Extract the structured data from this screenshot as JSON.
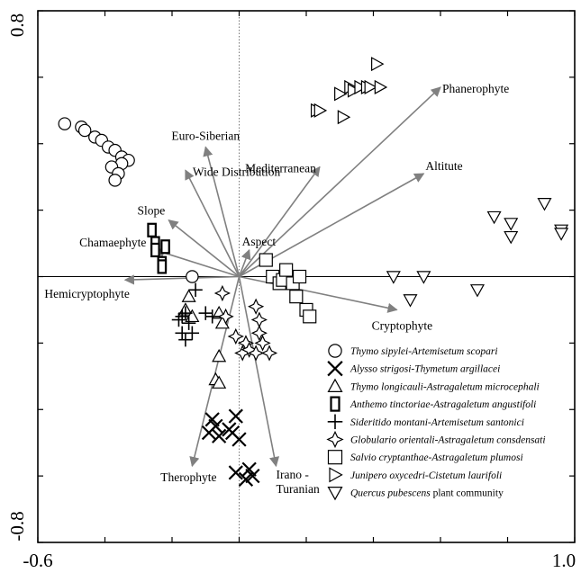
{
  "chart_data": {
    "type": "scatter",
    "subtype": "ordination-biplot",
    "title": "",
    "xlabel": "",
    "ylabel": "",
    "xlim": [
      -0.6,
      1.0
    ],
    "ylim": [
      -0.8,
      0.8
    ],
    "x_tick_labels": [
      "-0.6",
      "1.0"
    ],
    "y_tick_labels": [
      "0.8",
      "-0.8"
    ],
    "zero_lines": true,
    "grid": false,
    "legend_position": "bottom-right",
    "arrow_color": "#808080",
    "arrows": [
      {
        "label": "Phanerophyte",
        "x": 0.6,
        "y": 0.57
      },
      {
        "label": "Altitute",
        "x": 0.55,
        "y": 0.31
      },
      {
        "label": "Euro-Siberian",
        "x": -0.1,
        "y": 0.39
      },
      {
        "label": "Wide Distribution",
        "x": -0.16,
        "y": 0.32
      },
      {
        "label": "Mediterranean",
        "x": 0.24,
        "y": 0.33
      },
      {
        "label": "Slope",
        "x": -0.21,
        "y": 0.17
      },
      {
        "label": "Aspect",
        "x": 0.03,
        "y": 0.08
      },
      {
        "label": "Chamaephyte",
        "x": -0.25,
        "y": 0.08
      },
      {
        "label": "Hemicryptophyte",
        "x": -0.34,
        "y": -0.01
      },
      {
        "label": "Cryptophyte",
        "x": 0.47,
        "y": -0.1
      },
      {
        "label": "Therophyte",
        "x": -0.14,
        "y": -0.57
      },
      {
        "label": "Irano -\nTuranian",
        "x": 0.11,
        "y": -0.57
      }
    ],
    "series": [
      {
        "name": "Thymo sipylei-Artemisetum scopari",
        "marker": "circle",
        "points": [
          [
            -0.52,
            0.46
          ],
          [
            -0.47,
            0.45
          ],
          [
            -0.46,
            0.44
          ],
          [
            -0.43,
            0.42
          ],
          [
            -0.41,
            0.41
          ],
          [
            -0.39,
            0.39
          ],
          [
            -0.37,
            0.38
          ],
          [
            -0.35,
            0.36
          ],
          [
            -0.33,
            0.35
          ],
          [
            -0.35,
            0.34
          ],
          [
            -0.38,
            0.33
          ],
          [
            -0.36,
            0.31
          ],
          [
            -0.37,
            0.29
          ],
          [
            -0.14,
            0.0
          ]
        ]
      },
      {
        "name": "Alysso strigosi-Thymetum argillacei",
        "marker": "x",
        "points": [
          [
            -0.08,
            -0.43
          ],
          [
            -0.01,
            -0.42
          ],
          [
            -0.07,
            -0.45
          ],
          [
            -0.03,
            -0.46
          ],
          [
            -0.09,
            -0.47
          ],
          [
            -0.06,
            -0.48
          ],
          [
            -0.02,
            -0.47
          ],
          [
            0.0,
            -0.49
          ],
          [
            -0.01,
            -0.59
          ],
          [
            0.03,
            -0.58
          ],
          [
            0.02,
            -0.61
          ],
          [
            0.04,
            -0.6
          ]
        ]
      },
      {
        "name": "Thymo longicauli-Astragaletum microcephali",
        "marker": "triangle-up",
        "points": [
          [
            -0.15,
            -0.06
          ],
          [
            -0.16,
            -0.1
          ],
          [
            -0.14,
            -0.12
          ],
          [
            -0.06,
            -0.11
          ],
          [
            -0.05,
            -0.14
          ],
          [
            -0.06,
            -0.24
          ],
          [
            -0.07,
            -0.31
          ],
          [
            -0.06,
            -0.32
          ]
        ]
      },
      {
        "name": "Anthemo tinctoriae-Astragaletum angustifoli",
        "marker": "rect-tall",
        "points": [
          [
            -0.26,
            0.14
          ],
          [
            -0.25,
            0.1
          ],
          [
            -0.25,
            0.08
          ],
          [
            -0.22,
            0.09
          ],
          [
            -0.23,
            0.04
          ],
          [
            -0.23,
            0.03
          ]
        ]
      },
      {
        "name": "Sideritido montani-Artemisetum santonici",
        "marker": "plus",
        "points": [
          [
            -0.13,
            -0.04
          ],
          [
            -0.16,
            -0.11
          ],
          [
            -0.15,
            -0.14
          ],
          [
            -0.17,
            -0.12
          ],
          [
            -0.17,
            -0.17
          ],
          [
            -0.14,
            -0.17
          ],
          [
            -0.1,
            -0.11
          ],
          [
            -0.08,
            -0.12
          ],
          [
            -0.16,
            -0.19
          ],
          [
            -0.18,
            -0.13
          ]
        ]
      },
      {
        "name": "Globulario orientali-Astragaletum consdensati",
        "marker": "star4",
        "points": [
          [
            -0.05,
            -0.05
          ],
          [
            0.05,
            -0.09
          ],
          [
            0.06,
            -0.13
          ],
          [
            0.06,
            -0.17
          ],
          [
            -0.01,
            -0.18
          ],
          [
            0.02,
            -0.2
          ],
          [
            0.01,
            -0.23
          ],
          [
            0.03,
            -0.22
          ],
          [
            0.05,
            -0.23
          ],
          [
            0.09,
            -0.23
          ],
          [
            -0.04,
            -0.12
          ],
          [
            0.07,
            -0.2
          ]
        ]
      },
      {
        "name": "Salvio cryptanthae-Astragaletum plumosi",
        "marker": "square",
        "points": [
          [
            0.08,
            0.05
          ],
          [
            0.1,
            0.0
          ],
          [
            0.12,
            -0.02
          ],
          [
            0.13,
            -0.01
          ],
          [
            0.14,
            0.02
          ],
          [
            0.16,
            -0.02
          ],
          [
            0.18,
            0.0
          ],
          [
            0.17,
            -0.06
          ],
          [
            0.2,
            -0.1
          ],
          [
            0.21,
            -0.12
          ]
        ]
      },
      {
        "name": "Junipero oxycedri-Cistetum laurifoli",
        "marker": "triangle-right",
        "points": [
          [
            0.41,
            0.64
          ],
          [
            0.3,
            0.55
          ],
          [
            0.33,
            0.57
          ],
          [
            0.34,
            0.56
          ],
          [
            0.36,
            0.57
          ],
          [
            0.38,
            0.57
          ],
          [
            0.39,
            0.57
          ],
          [
            0.42,
            0.57
          ],
          [
            0.23,
            0.5
          ],
          [
            0.24,
            0.5
          ],
          [
            0.31,
            0.48
          ]
        ]
      },
      {
        "name": "Quercus pubescens plant community",
        "marker": "triangle-down",
        "points": [
          [
            0.46,
            0.0
          ],
          [
            0.55,
            0.0
          ],
          [
            0.51,
            -0.07
          ],
          [
            0.71,
            -0.04
          ],
          [
            0.76,
            0.18
          ],
          [
            0.81,
            0.16
          ],
          [
            0.81,
            0.12
          ],
          [
            0.91,
            0.22
          ],
          [
            0.96,
            0.14
          ],
          [
            0.96,
            0.13
          ]
        ]
      }
    ]
  }
}
